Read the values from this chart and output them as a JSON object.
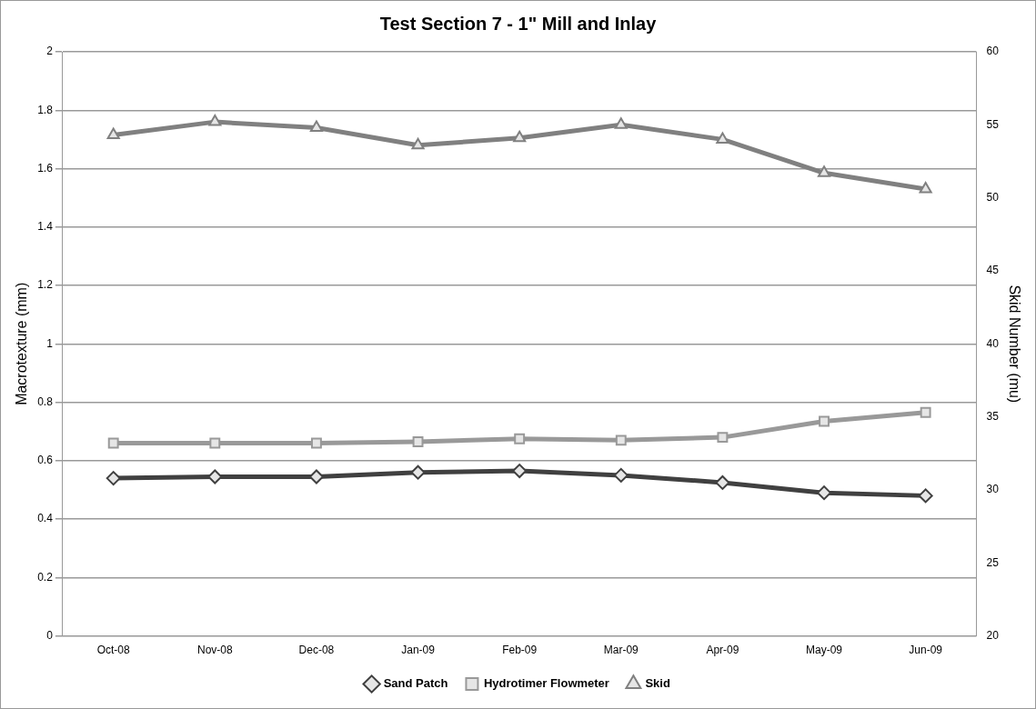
{
  "chart_data": {
    "type": "line",
    "title": "Test Section 7 - 1\" Mill and Inlay",
    "ylabel": "Macrotexture (mm)",
    "y2label": "Skid Number (mu)",
    "categories": [
      "Oct-08",
      "Nov-08",
      "Dec-08",
      "Jan-09",
      "Feb-09",
      "Mar-09",
      "Apr-09",
      "May-09",
      "Jun-09"
    ],
    "series": [
      {
        "name": "Sand Patch",
        "color": "#404040",
        "marker": "diamond",
        "values": [
          0.54,
          0.545,
          0.545,
          0.56,
          0.565,
          0.55,
          0.525,
          0.49,
          0.48
        ]
      },
      {
        "name": "Hydrotimer Flowmeter",
        "color": "#999999",
        "marker": "square",
        "values": [
          0.66,
          0.66,
          0.66,
          0.665,
          0.675,
          0.67,
          0.68,
          0.735,
          0.765
        ]
      },
      {
        "name": "Skid",
        "color": "#808080",
        "marker": "triangle",
        "axis": "y2",
        "values": [
          54.3,
          55.2,
          54.8,
          53.6,
          54.1,
          55.0,
          54.0,
          51.7,
          50.6
        ]
      }
    ],
    "ylim": [
      0,
      2
    ],
    "yticks": [
      0,
      0.2,
      0.4,
      0.6,
      0.8,
      1,
      1.2,
      1.4,
      1.6,
      1.8,
      2
    ],
    "y2lim": [
      20,
      60
    ],
    "y2ticks": [
      20,
      25,
      30,
      35,
      40,
      45,
      50,
      55,
      60
    ],
    "grid": "y",
    "legend": "bottom",
    "line_style": "solid"
  }
}
